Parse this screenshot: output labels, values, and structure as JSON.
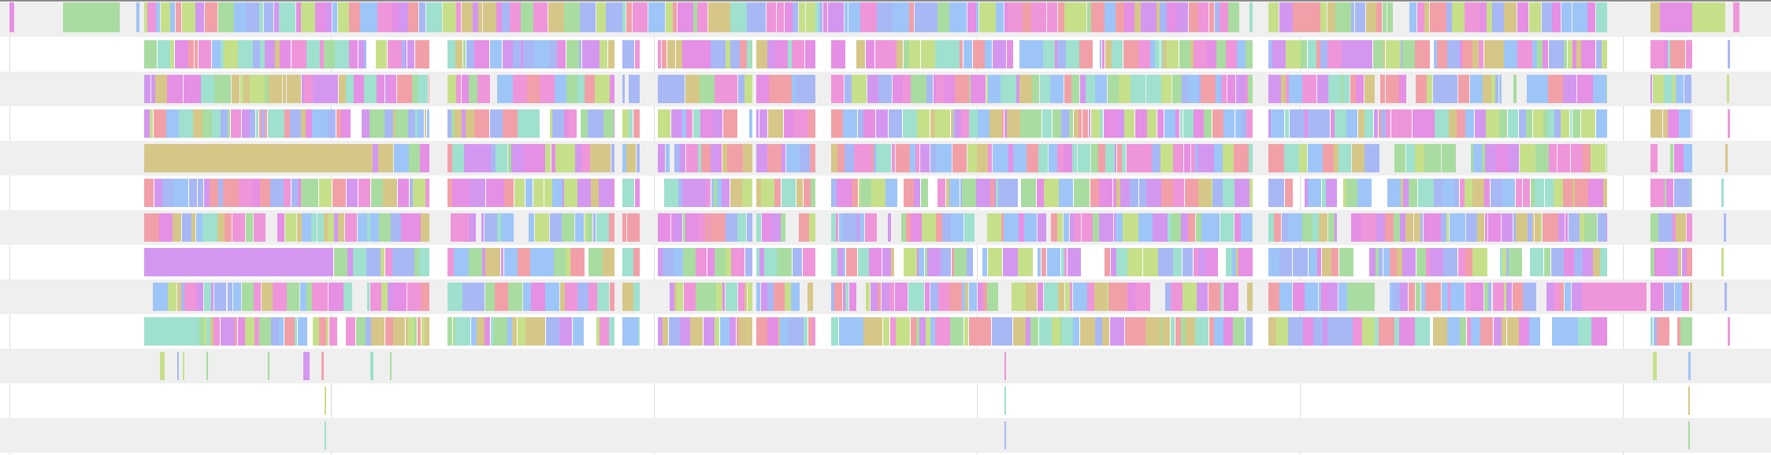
{
  "timeline": {
    "row_count": 13,
    "palette": [
      "#e58fe5",
      "#d497f0",
      "#9ec5f7",
      "#a8b8f5",
      "#a9dca0",
      "#d6c788",
      "#f2a0a8",
      "#9fe0cf",
      "#ee96d9",
      "#c6e08a"
    ],
    "row_background": "#efefef",
    "gridline_color": "#dcdcdc"
  }
}
